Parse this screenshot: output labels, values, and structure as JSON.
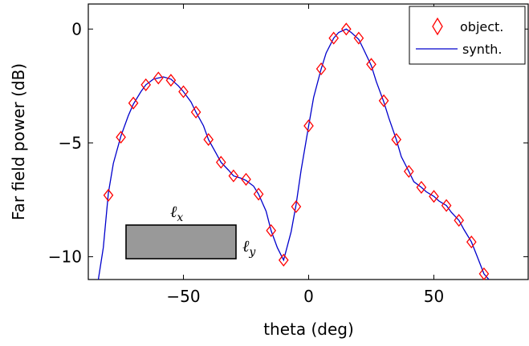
{
  "chart_data": {
    "type": "line",
    "xlabel": "theta (deg)",
    "ylabel": "Far field power (dB)",
    "xlim": [
      -88,
      88
    ],
    "ylim": [
      -11,
      1.1
    ],
    "xticks": [
      -50,
      0,
      50
    ],
    "xtick_labels": [
      "−50",
      "0",
      "50"
    ],
    "yticks": [
      0,
      -5,
      -10
    ],
    "ytick_labels": [
      "0",
      "−5",
      "−10"
    ],
    "grid": false,
    "legend_position": "top-right",
    "series": [
      {
        "name": "object.",
        "style": "markers",
        "marker": "diamond",
        "color": "#ff0000",
        "x": [
          -80,
          -75,
          -70,
          -65,
          -60,
          -55,
          -50,
          -45,
          -40,
          -35,
          -30,
          -25,
          -20,
          -15,
          -10,
          -5,
          0,
          5,
          10,
          15,
          20,
          25,
          30,
          35,
          40,
          45,
          50,
          55,
          60,
          65,
          70
        ],
        "y": [
          -7.3,
          -4.75,
          -3.25,
          -2.45,
          -2.15,
          -2.25,
          -2.75,
          -3.65,
          -4.85,
          -5.85,
          -6.45,
          -6.6,
          -7.25,
          -8.85,
          -10.15,
          -7.8,
          -4.25,
          -1.75,
          -0.4,
          0.0,
          -0.4,
          -1.55,
          -3.15,
          -4.85,
          -6.25,
          -6.95,
          -7.35,
          -7.75,
          -8.4,
          -9.35,
          -10.75
        ]
      },
      {
        "name": "synth.",
        "style": "line",
        "color": "#0000cc",
        "x": [
          -84,
          -82,
          -80,
          -78,
          -75,
          -72,
          -70,
          -67,
          -65,
          -62,
          -60,
          -58,
          -55,
          -52,
          -50,
          -47,
          -45,
          -42,
          -40,
          -37,
          -35,
          -32,
          -30,
          -27,
          -25,
          -22,
          -20,
          -17,
          -15,
          -12.5,
          -10,
          -7,
          -5,
          -3,
          0,
          2,
          5,
          7,
          10,
          12,
          15,
          17,
          20,
          22,
          25,
          27,
          30,
          32,
          35,
          37,
          40,
          42,
          45,
          47,
          50,
          52,
          55,
          57,
          60,
          62,
          65,
          67,
          70,
          72
        ],
        "y": [
          -11.0,
          -9.6,
          -7.2,
          -5.9,
          -4.7,
          -3.8,
          -3.3,
          -2.75,
          -2.45,
          -2.2,
          -2.15,
          -2.1,
          -2.2,
          -2.5,
          -2.75,
          -3.2,
          -3.65,
          -4.25,
          -4.85,
          -5.45,
          -5.85,
          -6.2,
          -6.45,
          -6.55,
          -6.65,
          -6.9,
          -7.25,
          -8.0,
          -8.85,
          -9.6,
          -10.15,
          -8.9,
          -7.7,
          -6.2,
          -4.25,
          -3.0,
          -1.75,
          -1.05,
          -0.4,
          -0.15,
          0.0,
          -0.15,
          -0.45,
          -0.9,
          -1.6,
          -2.3,
          -3.2,
          -3.9,
          -4.85,
          -5.6,
          -6.25,
          -6.7,
          -6.95,
          -7.15,
          -7.35,
          -7.55,
          -7.75,
          -8.05,
          -8.4,
          -8.8,
          -9.35,
          -9.9,
          -10.75,
          -11.0
        ]
      }
    ],
    "inset": {
      "shape": "rectangle",
      "fill": "#999999",
      "label_top": "ℓx",
      "label_right": "ℓy"
    }
  }
}
